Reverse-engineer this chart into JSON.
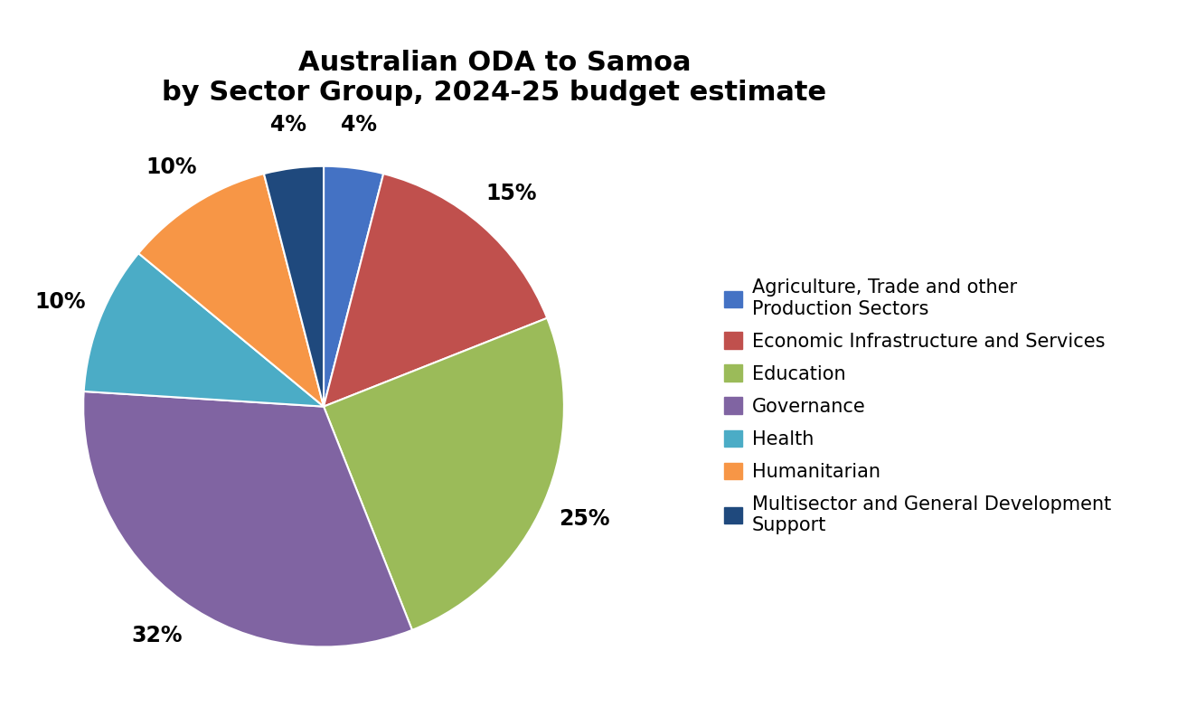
{
  "title": "Australian ODA to Samoa\nby Sector Group, 2024-25 budget estimate",
  "title_fontsize": 22,
  "title_fontweight": "bold",
  "legend_labels": [
    "Agriculture, Trade and other\nProduction Sectors",
    "Economic Infrastructure and Services",
    "Education",
    "Governance",
    "Health",
    "Humanitarian",
    "Multisector and General Development\nSupport"
  ],
  "values": [
    4,
    15,
    25,
    32,
    10,
    10,
    4
  ],
  "colors": [
    "#4472C4",
    "#C0504D",
    "#9BBB59",
    "#8064A2",
    "#4BACC6",
    "#F79646",
    "#1F497D"
  ],
  "startangle": 90,
  "background_color": "#FFFFFF",
  "pct_fontsize": 17,
  "legend_fontsize": 15,
  "pct_labels": [
    "4%",
    "15%",
    "25%",
    "32%",
    "10%",
    "10%",
    "4%"
  ]
}
